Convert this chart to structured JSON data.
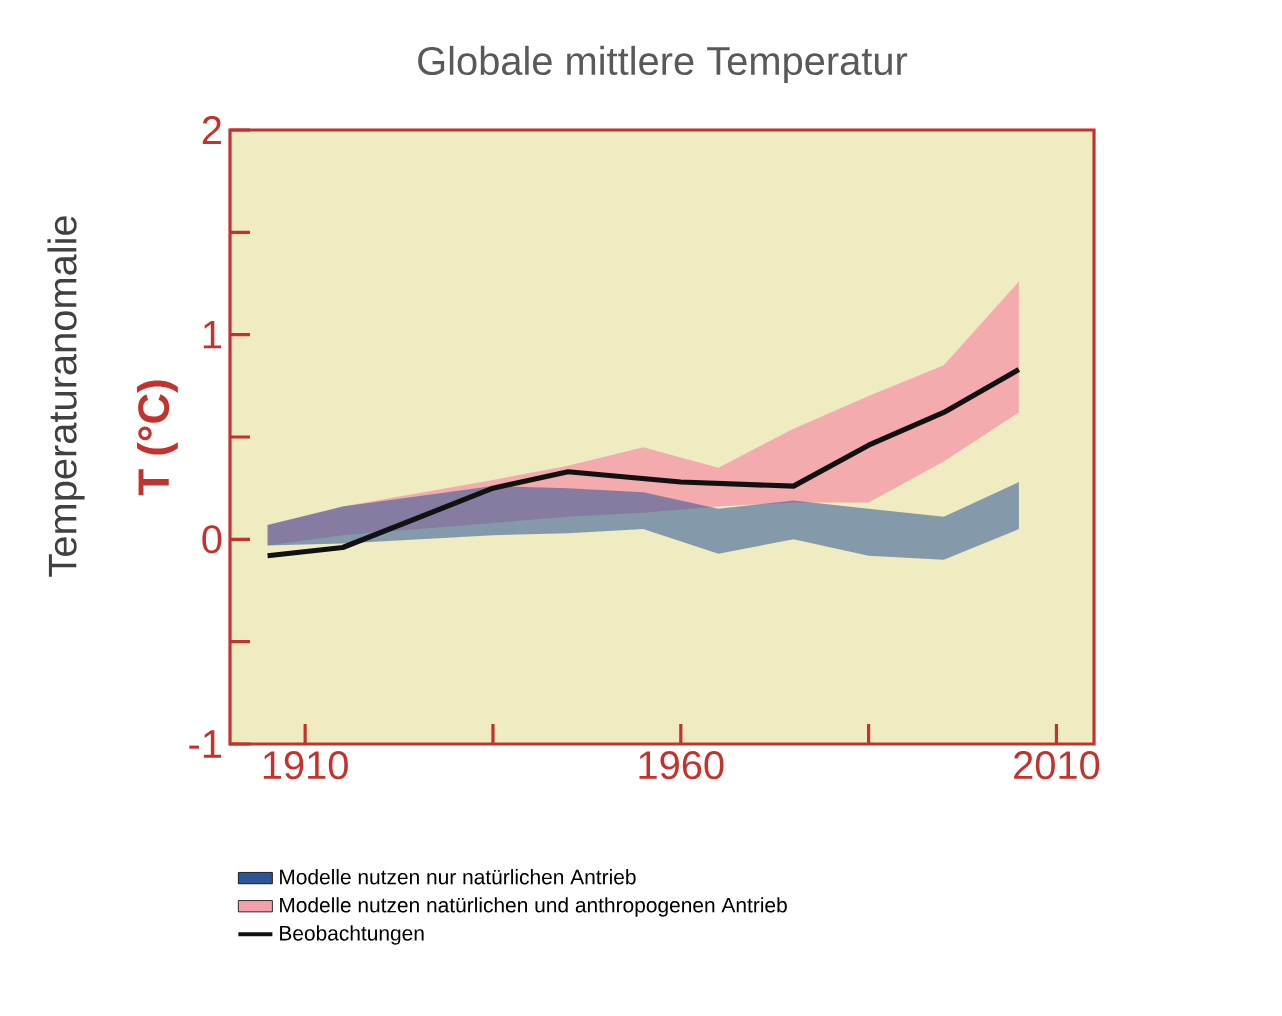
{
  "chart_data": {
    "type": "line",
    "title": "Globale mittlere Temperatur",
    "ylabel": "T (°C)",
    "annotations": [
      "Temperaturanomalie"
    ],
    "xlim": [
      1900,
      2015
    ],
    "xticks": [
      1910,
      {
        "value": 1935,
        "label": null
      },
      1960,
      {
        "value": 1985,
        "label": null
      },
      2010
    ],
    "ylim": [
      -1,
      2
    ],
    "yticks": [
      -1,
      {
        "value": -0.5,
        "label": null
      },
      0,
      {
        "value": 0.5,
        "label": null
      },
      1,
      {
        "value": 1.5,
        "label": null
      },
      2
    ],
    "grid": false,
    "legend": "bottom",
    "marker": "none",
    "series": [
      {
        "name": "Modelle nutzen nur natürlichen Antrieb",
        "color": "#2b5597",
        "x": [
          1905,
          1915,
          1935,
          1945,
          1955,
          1965,
          1975,
          1985,
          1995,
          2005
        ],
        "values": [
          null,
          null,
          null,
          null,
          null,
          null,
          null,
          null,
          null,
          null
        ],
        "lower": [
          -0.03,
          -0.02,
          0.02,
          0.03,
          0.05,
          -0.07,
          0.0,
          -0.08,
          -0.1,
          0.05
        ],
        "upper": [
          0.07,
          0.16,
          0.26,
          0.25,
          0.23,
          0.15,
          0.19,
          0.15,
          0.11,
          0.28
        ]
      },
      {
        "name": "Modelle nutzen natürlichen und anthropogenen Antrieb",
        "color": "#f3a0aa",
        "x": [
          1905,
          1915,
          1935,
          1945,
          1955,
          1965,
          1975,
          1985,
          1995,
          2005
        ],
        "values": [
          null,
          null,
          null,
          null,
          null,
          null,
          null,
          null,
          null,
          null
        ],
        "lower": [
          -0.03,
          0.02,
          0.08,
          0.11,
          0.13,
          0.16,
          0.18,
          0.18,
          0.38,
          0.62
        ],
        "upper": [
          0.07,
          0.16,
          0.29,
          0.36,
          0.45,
          0.35,
          0.54,
          0.7,
          0.85,
          1.26
        ]
      },
      {
        "name": "Beobachtungen",
        "type": "line",
        "color": "#111111",
        "x": [
          1905,
          1915,
          1935,
          1945,
          1960,
          1975,
          1985,
          1995,
          2005
        ],
        "values": [
          -0.08,
          -0.04,
          0.25,
          0.33,
          0.28,
          0.26,
          0.46,
          0.62,
          0.83
        ]
      }
    ]
  }
}
